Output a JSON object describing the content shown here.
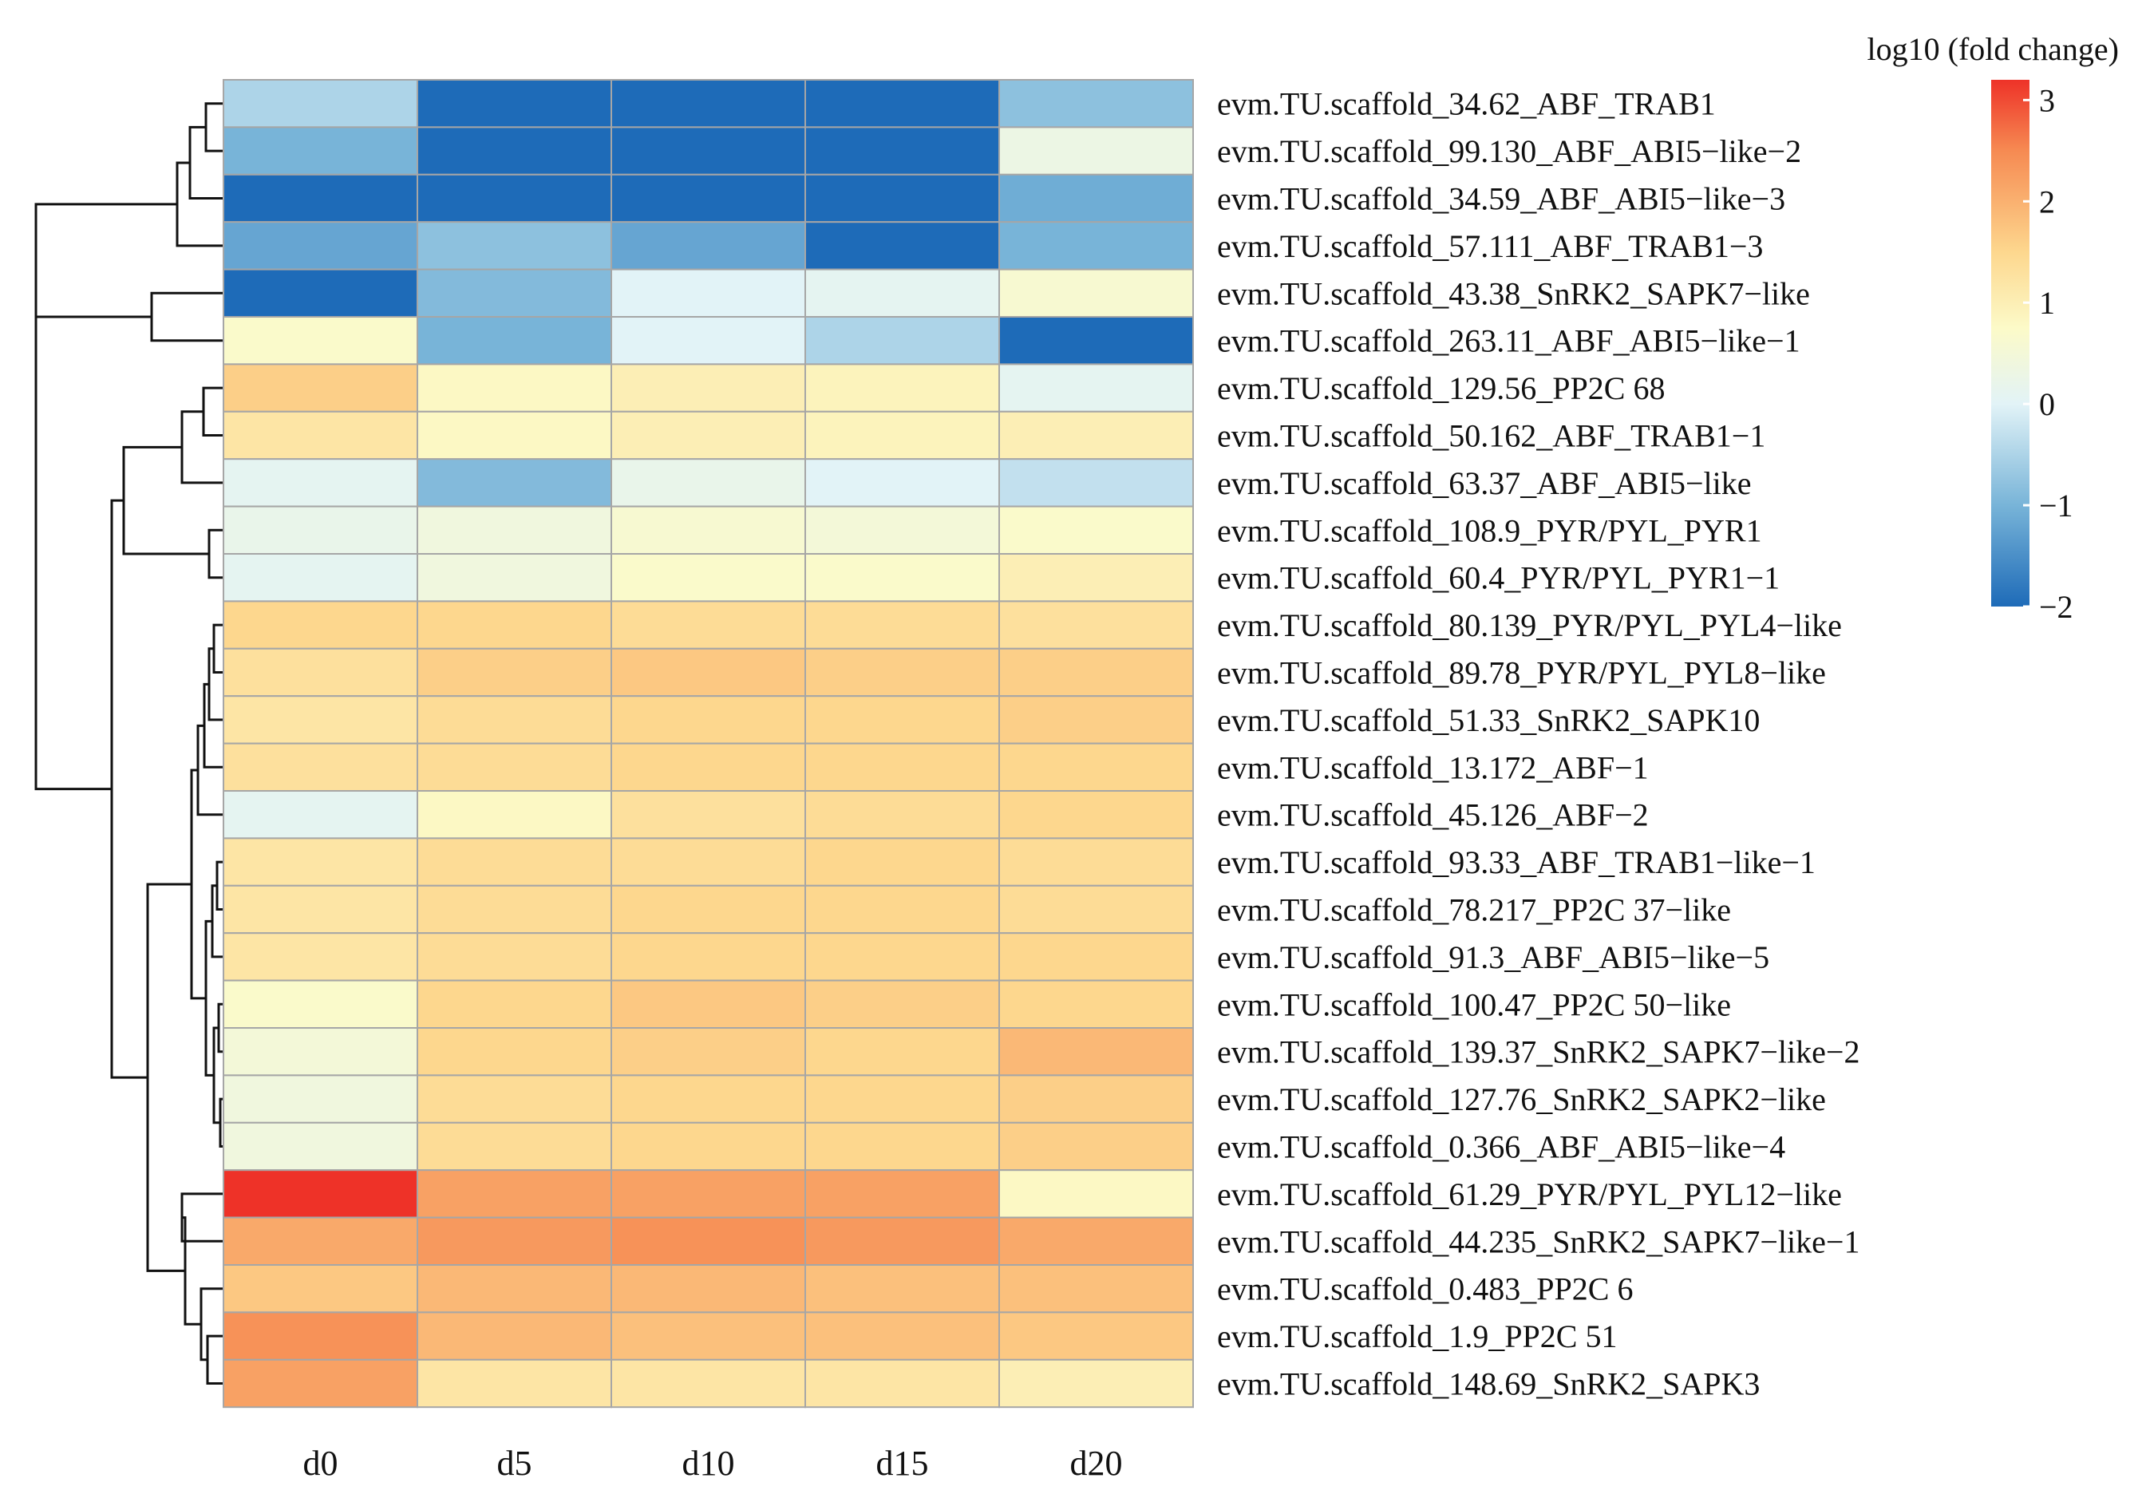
{
  "chart_data": {
    "type": "heatmap",
    "title": "",
    "legend_title": "log10 (fold change)",
    "legend_ticks": [
      3,
      2,
      1,
      0,
      -1,
      -2
    ],
    "legend_range": [
      -2,
      3.2
    ],
    "colorscale": [
      [
        -2.0,
        "#1e6bb8"
      ],
      [
        -1.0,
        "#78b4d8"
      ],
      [
        0.0,
        "#e2f3f7"
      ],
      [
        0.75,
        "#fcfac8"
      ],
      [
        1.5,
        "#fdd78e"
      ],
      [
        2.5,
        "#f68a52"
      ],
      [
        3.2,
        "#ee3228"
      ]
    ],
    "columns": [
      "d0",
      "d5",
      "d10",
      "d15",
      "d20"
    ],
    "rows": [
      "evm.TU.scaffold_34.62_ABF_TRAB1",
      "evm.TU.scaffold_99.130_ABF_ABI5−like−2",
      "evm.TU.scaffold_34.59_ABF_ABI5−like−3",
      "evm.TU.scaffold_57.111_ABF_TRAB1−3",
      "evm.TU.scaffold_43.38_SnRK2_SAPK7−like",
      "evm.TU.scaffold_263.11_ABF_ABI5−like−1",
      "evm.TU.scaffold_129.56_PP2C 68",
      "evm.TU.scaffold_50.162_ABF_TRAB1−1",
      "evm.TU.scaffold_63.37_ABF_ABI5−like",
      "evm.TU.scaffold_108.9_PYR/PYL_PYR1",
      "evm.TU.scaffold_60.4_PYR/PYL_PYR1−1",
      "evm.TU.scaffold_80.139_PYR/PYL_PYL4−like",
      "evm.TU.scaffold_89.78_PYR/PYL_PYL8−like",
      "evm.TU.scaffold_51.33_SnRK2_SAPK10",
      "evm.TU.scaffold_13.172_ABF−1",
      "evm.TU.scaffold_45.126_ABF−2",
      "evm.TU.scaffold_93.33_ABF_TRAB1−like−1",
      "evm.TU.scaffold_78.217_PP2C 37−like",
      "evm.TU.scaffold_91.3_ABF_ABI5−like−5",
      "evm.TU.scaffold_100.47_PP2C 50−like",
      "evm.TU.scaffold_139.37_SnRK2_SAPK7−like−2",
      "evm.TU.scaffold_127.76_SnRK2_SAPK2−like",
      "evm.TU.scaffold_0.366_ABF_ABI5−like−4",
      "evm.TU.scaffold_61.29_PYR/PYL_PYL12−like",
      "evm.TU.scaffold_44.235_SnRK2_SAPK7−like−1",
      "evm.TU.scaffold_0.483_PP2C 6",
      "evm.TU.scaffold_1.9_PP2C 51",
      "evm.TU.scaffold_148.69_SnRK2_SAPK3"
    ],
    "values": [
      [
        -0.5,
        -2.0,
        -2.0,
        -2.0,
        -0.8
      ],
      [
        -1.0,
        -2.0,
        -2.0,
        -2.0,
        0.3
      ],
      [
        -2.0,
        -2.0,
        -2.0,
        -2.0,
        -1.1
      ],
      [
        -1.2,
        -0.8,
        -1.2,
        -2.0,
        -1.0
      ],
      [
        -2.0,
        -0.9,
        0.0,
        0.1,
        0.6
      ],
      [
        0.7,
        -1.0,
        0.0,
        -0.5,
        -2.0
      ],
      [
        1.6,
        0.8,
        1.0,
        0.9,
        0.1
      ],
      [
        1.2,
        0.8,
        1.0,
        0.9,
        1.0
      ],
      [
        0.1,
        -0.9,
        0.2,
        0.0,
        -0.3
      ],
      [
        0.2,
        0.4,
        0.6,
        0.5,
        0.7
      ],
      [
        0.1,
        0.4,
        0.7,
        0.7,
        1.0
      ],
      [
        1.5,
        1.5,
        1.4,
        1.4,
        1.3
      ],
      [
        1.3,
        1.6,
        1.7,
        1.6,
        1.6
      ],
      [
        1.2,
        1.4,
        1.5,
        1.5,
        1.6
      ],
      [
        1.3,
        1.4,
        1.5,
        1.5,
        1.5
      ],
      [
        0.1,
        0.8,
        1.3,
        1.4,
        1.5
      ],
      [
        1.2,
        1.4,
        1.4,
        1.5,
        1.4
      ],
      [
        1.2,
        1.4,
        1.5,
        1.5,
        1.4
      ],
      [
        1.2,
        1.4,
        1.5,
        1.5,
        1.5
      ],
      [
        0.7,
        1.5,
        1.7,
        1.6,
        1.5
      ],
      [
        0.5,
        1.5,
        1.6,
        1.5,
        1.9
      ],
      [
        0.4,
        1.4,
        1.5,
        1.5,
        1.6
      ],
      [
        0.4,
        1.4,
        1.5,
        1.5,
        1.6
      ],
      [
        3.2,
        2.2,
        2.2,
        2.2,
        0.8
      ],
      [
        2.1,
        2.3,
        2.4,
        2.3,
        2.1
      ],
      [
        1.7,
        1.9,
        1.9,
        1.8,
        1.8
      ],
      [
        2.4,
        1.9,
        1.8,
        1.8,
        1.7
      ],
      [
        2.2,
        1.2,
        1.2,
        1.2,
        1.0
      ]
    ]
  }
}
